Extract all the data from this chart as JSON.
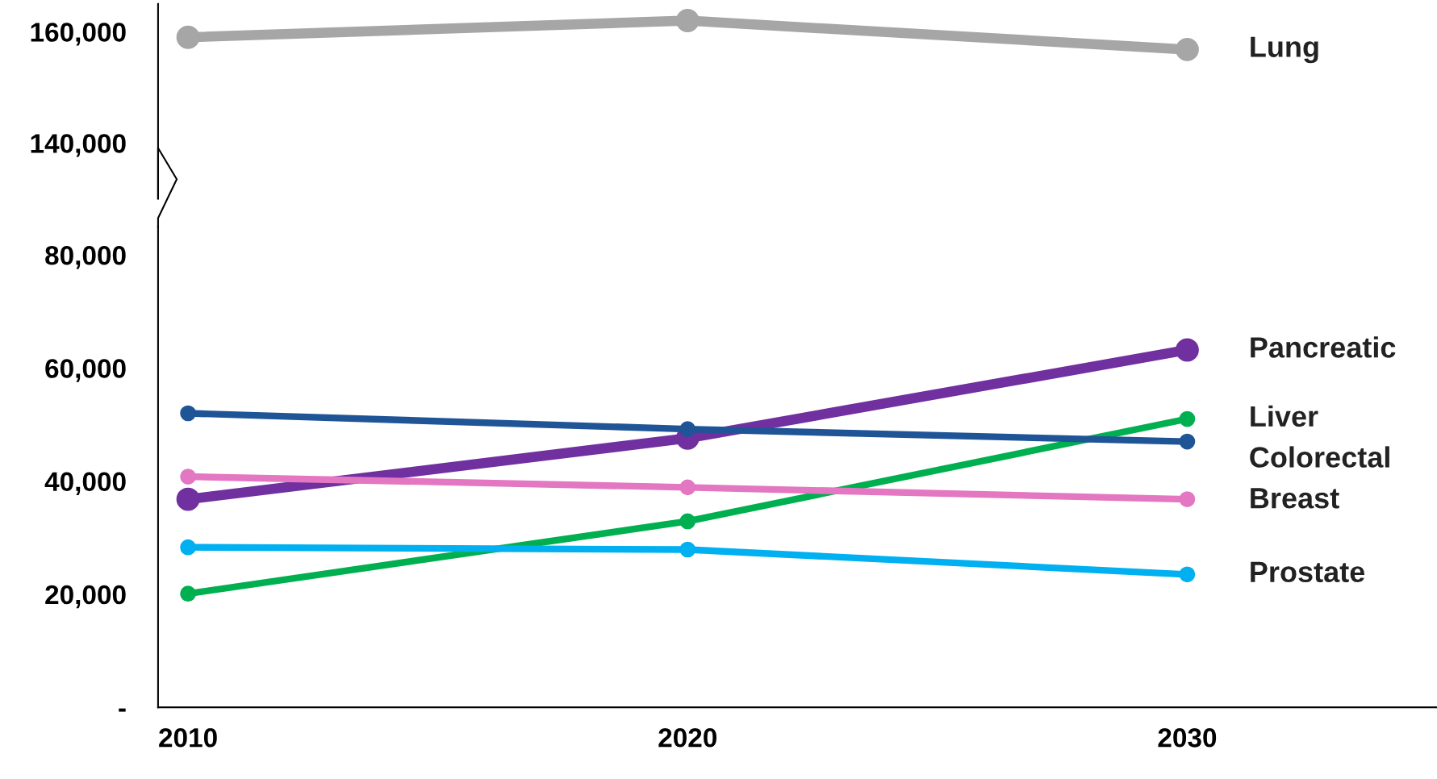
{
  "chart_data": [
    {
      "type": "line",
      "x": [
        2010,
        2020,
        2030
      ],
      "ylim": [
        130000,
        165000
      ],
      "yticks": [
        {
          "value": 140000,
          "label": "140,000"
        },
        {
          "value": 160000,
          "label": "160,000"
        }
      ],
      "tick_labels": "y",
      "marker": "circle",
      "grid": false,
      "legend": false,
      "series": [
        {
          "name": "Lung",
          "color": "#a6a6a6",
          "values": [
            159000,
            162000,
            156800
          ]
        }
      ]
    },
    {
      "type": "line",
      "x": [
        2010,
        2020,
        2030
      ],
      "xlim": [
        2009.4,
        2035
      ],
      "ylim": [
        0,
        85000
      ],
      "xticks": [
        2010,
        2020,
        2030
      ],
      "yticks": [
        {
          "value": 0,
          "label": "-"
        },
        {
          "value": 20000,
          "label": "20,000"
        },
        {
          "value": 40000,
          "label": "40,000"
        },
        {
          "value": 60000,
          "label": "60,000"
        },
        {
          "value": 80000,
          "label": "80,000"
        }
      ],
      "marker": "circle",
      "grid": false,
      "legend": false,
      "series": [
        {
          "name": "Pancreatic",
          "color": "#7030a0",
          "values": [
            36800,
            47600,
            63200
          ]
        },
        {
          "name": "Liver",
          "color": "#00b050",
          "values": [
            20100,
            32900,
            51000
          ]
        },
        {
          "name": "Colorectal",
          "color": "#1f5597",
          "values": [
            52000,
            49200,
            47000
          ]
        },
        {
          "name": "Breast",
          "color": "#e377c2",
          "values": [
            40800,
            38900,
            36800
          ]
        },
        {
          "name": "Prostate",
          "color": "#00b0f0",
          "values": [
            28300,
            27900,
            23500
          ]
        }
      ]
    }
  ]
}
